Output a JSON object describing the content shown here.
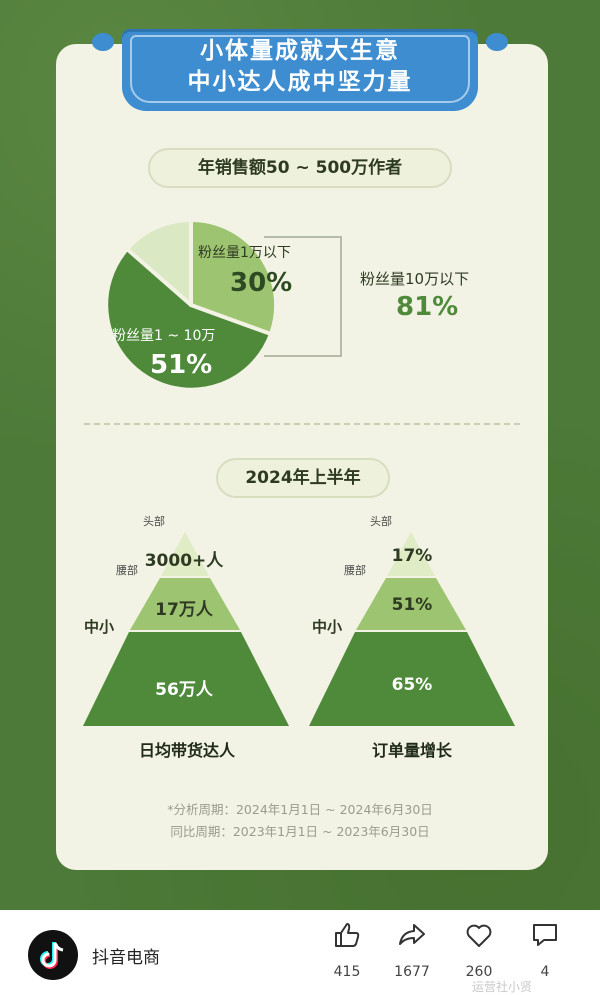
{
  "banner": {
    "line1": "小体量成就大生意",
    "line2": "中小达人成中坚力量"
  },
  "sales_section": {
    "title": "年销售额50 ~ 500万作者",
    "pie": {
      "slices": [
        {
          "label": "粉丝量1万以下",
          "value": "30%",
          "color": "#9dc470"
        },
        {
          "label": "粉丝量1 ~ 10万",
          "value": "51%",
          "color": "#4f8a3b"
        },
        {
          "label": "",
          "value": "",
          "color": "#dbe8c4"
        }
      ],
      "summary_label": "粉丝量10万以下",
      "summary_value": "81%"
    }
  },
  "half_section": {
    "title": "2024年上半年",
    "pyramids": [
      {
        "caption": "日均带货达人",
        "top": "3000+人",
        "mid": "17万人",
        "base": "56万人",
        "labels": {
          "top": "头部",
          "mid": "腰部",
          "base": "中小"
        }
      },
      {
        "caption": "订单量增长",
        "top": "17%",
        "mid": "51%",
        "base": "65%",
        "labels": {
          "top": "头部",
          "mid": "腰部",
          "base": "中小"
        }
      }
    ]
  },
  "footnotes": [
    "*分析周期：2024年1月1日 ~ 2024年6月30日",
    "同比周期：2023年1月1日 ~ 2023年6月30日"
  ],
  "post_bar": {
    "account": "抖音电商",
    "likes": "415",
    "shares": "1677",
    "favorites": "260",
    "comments": "4",
    "watermark": "运营社小贤"
  },
  "colors": {
    "bg": "#4d7a38",
    "card": "#f2f3e5",
    "banner": "#3d8dd0",
    "dark_green": "#4f8a3b",
    "light_green": "#9dc470"
  }
}
